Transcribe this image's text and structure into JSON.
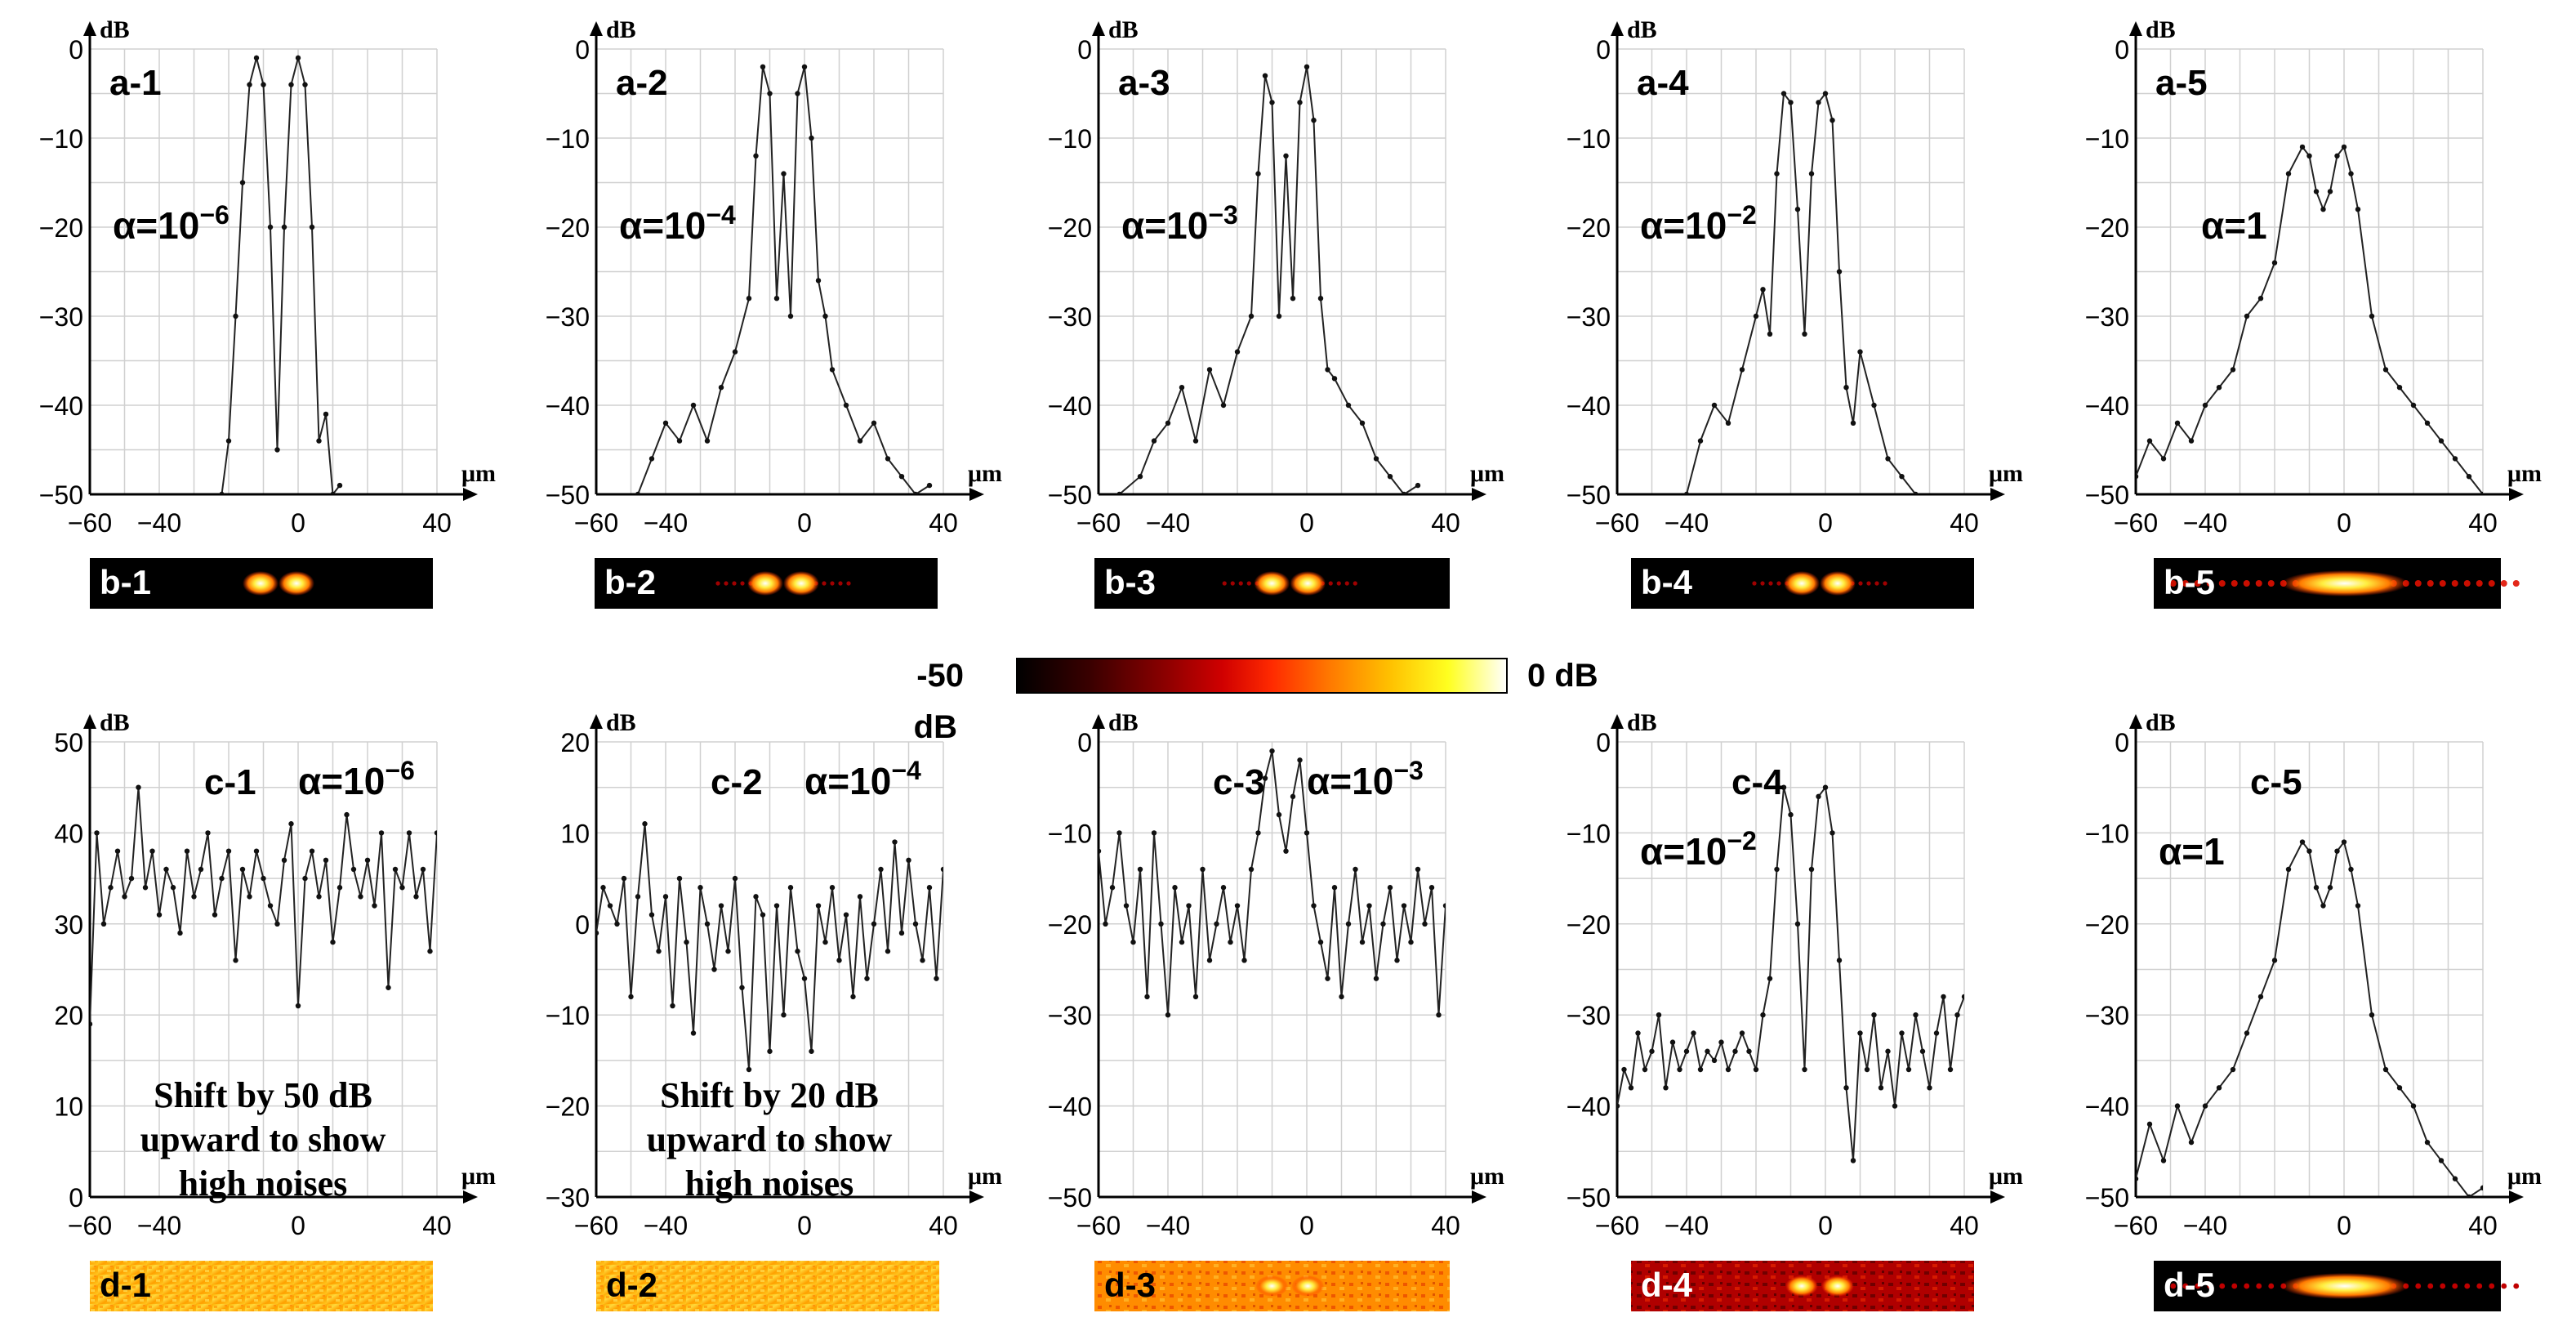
{
  "figure": {
    "colorbar": {
      "min_label": "-50",
      "unit_min": "dB",
      "max_label": "0 dB",
      "colors": [
        "#000000",
        "#3a0000",
        "#8a0000",
        "#d00000",
        "#ff2a00",
        "#ff7a00",
        "#ffc000",
        "#ffff20",
        "#ffffff"
      ]
    },
    "axis_unit_y": "dB",
    "axis_unit_x": "μm"
  },
  "chart_data": [
    {
      "type": "line",
      "panel": "a-1",
      "label": "a-1",
      "alpha": "α=10",
      "alpha_exp": "−6",
      "xlim": [
        -60,
        40
      ],
      "ylim": [
        -50,
        0
      ],
      "xticks": [
        -60,
        -40,
        0,
        40
      ],
      "yticks": [
        0,
        -10,
        -20,
        -30,
        -40,
        -50
      ],
      "x": [
        -22,
        -20,
        -18,
        -16,
        -14,
        -12,
        -10,
        -8,
        -6,
        -4,
        -2,
        0,
        2,
        4,
        6,
        8,
        10,
        12
      ],
      "y": [
        -50,
        -44,
        -30,
        -15,
        -4,
        -1,
        -4,
        -20,
        -45,
        -20,
        -4,
        -1,
        -4,
        -20,
        -44,
        -41,
        -50,
        -49
      ]
    },
    {
      "type": "line",
      "panel": "a-2",
      "label": "a-2",
      "alpha": "α=10",
      "alpha_exp": "−4",
      "xlim": [
        -60,
        40
      ],
      "ylim": [
        -50,
        0
      ],
      "xticks": [
        -60,
        -40,
        0,
        40
      ],
      "yticks": [
        0,
        -10,
        -20,
        -30,
        -40,
        -50
      ],
      "x": [
        -48,
        -44,
        -40,
        -36,
        -32,
        -28,
        -24,
        -20,
        -16,
        -14,
        -12,
        -10,
        -8,
        -6,
        -4,
        -2,
        0,
        2,
        4,
        6,
        8,
        12,
        16,
        20,
        24,
        28,
        32,
        36
      ],
      "y": [
        -50,
        -46,
        -42,
        -44,
        -40,
        -44,
        -38,
        -34,
        -28,
        -12,
        -2,
        -5,
        -28,
        -14,
        -30,
        -5,
        -2,
        -10,
        -26,
        -30,
        -36,
        -40,
        -44,
        -42,
        -46,
        -48,
        -50,
        -49
      ]
    },
    {
      "type": "line",
      "panel": "a-3",
      "label": "a-3",
      "alpha": "α=10",
      "alpha_exp": "−3",
      "xlim": [
        -60,
        40
      ],
      "ylim": [
        -50,
        0
      ],
      "xticks": [
        -60,
        -40,
        0,
        40
      ],
      "yticks": [
        0,
        -10,
        -20,
        -30,
        -40,
        -50
      ],
      "x": [
        -54,
        -48,
        -44,
        -40,
        -36,
        -32,
        -28,
        -24,
        -20,
        -16,
        -14,
        -12,
        -10,
        -8,
        -6,
        -4,
        -2,
        0,
        2,
        4,
        6,
        8,
        12,
        16,
        20,
        24,
        28,
        32
      ],
      "y": [
        -50,
        -48,
        -44,
        -42,
        -38,
        -44,
        -36,
        -40,
        -34,
        -30,
        -14,
        -3,
        -6,
        -30,
        -12,
        -28,
        -6,
        -2,
        -8,
        -28,
        -36,
        -37,
        -40,
        -42,
        -46,
        -48,
        -50,
        -49
      ]
    },
    {
      "type": "line",
      "panel": "a-4",
      "label": "a-4",
      "alpha": "α=10",
      "alpha_exp": "−2",
      "xlim": [
        -60,
        40
      ],
      "ylim": [
        -50,
        0
      ],
      "xticks": [
        -60,
        -40,
        0,
        40
      ],
      "yticks": [
        0,
        -10,
        -20,
        -30,
        -40,
        -50
      ],
      "x": [
        -40,
        -36,
        -32,
        -28,
        -24,
        -20,
        -18,
        -16,
        -14,
        -12,
        -10,
        -8,
        -6,
        -4,
        -2,
        0,
        2,
        4,
        6,
        8,
        10,
        14,
        18,
        22,
        26
      ],
      "y": [
        -50,
        -44,
        -40,
        -42,
        -36,
        -30,
        -27,
        -32,
        -14,
        -5,
        -6,
        -18,
        -32,
        -14,
        -6,
        -5,
        -8,
        -25,
        -38,
        -42,
        -34,
        -40,
        -46,
        -48,
        -50
      ]
    },
    {
      "type": "line",
      "panel": "a-5",
      "label": "a-5",
      "alpha": "α=1",
      "alpha_exp": "",
      "xlim": [
        -60,
        40
      ],
      "ylim": [
        -50,
        0
      ],
      "xticks": [
        -60,
        -40,
        0,
        40
      ],
      "yticks": [
        0,
        -10,
        -20,
        -30,
        -40,
        -50
      ],
      "x": [
        -64,
        -60,
        -56,
        -52,
        -48,
        -44,
        -40,
        -36,
        -32,
        -28,
        -24,
        -20,
        -16,
        -12,
        -10,
        -8,
        -6,
        -4,
        -2,
        0,
        2,
        4,
        8,
        12,
        16,
        20,
        24,
        28,
        32,
        36,
        40
      ],
      "y": [
        -50,
        -48,
        -44,
        -46,
        -42,
        -44,
        -40,
        -38,
        -36,
        -30,
        -28,
        -24,
        -14,
        -11,
        -12,
        -16,
        -18,
        -16,
        -12,
        -11,
        -14,
        -18,
        -30,
        -36,
        -38,
        -40,
        -42,
        -44,
        -46,
        -48,
        -50
      ]
    },
    {
      "type": "line",
      "panel": "c-1",
      "label": "c-1",
      "alpha": "α=10",
      "alpha_exp": "−6",
      "xlim": [
        -60,
        40
      ],
      "ylim": [
        0,
        50
      ],
      "xticks": [
        -60,
        -40,
        0,
        40
      ],
      "yticks": [
        50,
        40,
        30,
        20,
        10,
        0
      ],
      "annotation": [
        "Shift by  50 dB",
        "upward to show",
        "high noises"
      ],
      "x": [
        -64,
        -62,
        -60,
        -58,
        -56,
        -54,
        -52,
        -50,
        -48,
        -46,
        -44,
        -42,
        -40,
        -38,
        -36,
        -34,
        -32,
        -30,
        -28,
        -26,
        -24,
        -22,
        -20,
        -18,
        -16,
        -14,
        -12,
        -10,
        -8,
        -6,
        -4,
        -2,
        0,
        2,
        4,
        6,
        8,
        10,
        12,
        14,
        16,
        18,
        20,
        22,
        24,
        26,
        28,
        30,
        32,
        34,
        36,
        38,
        40
      ],
      "y": [
        34,
        36,
        19,
        40,
        30,
        34,
        38,
        33,
        35,
        45,
        34,
        38,
        31,
        36,
        34,
        29,
        38,
        33,
        36,
        40,
        31,
        35,
        38,
        26,
        36,
        33,
        38,
        35,
        32,
        30,
        37,
        41,
        21,
        35,
        38,
        33,
        37,
        28,
        34,
        42,
        36,
        33,
        37,
        32,
        40,
        23,
        36,
        34,
        40,
        33,
        36,
        27,
        40
      ]
    },
    {
      "type": "line",
      "panel": "c-2",
      "label": "c-2",
      "alpha": "α=10",
      "alpha_exp": "−4",
      "xlim": [
        -60,
        40
      ],
      "ylim": [
        -30,
        20
      ],
      "xticks": [
        -60,
        -40,
        0,
        40
      ],
      "yticks": [
        20,
        10,
        0,
        -10,
        -20,
        -30
      ],
      "annotation": [
        "Shift by  20 dB",
        "upward to show",
        "high noises"
      ],
      "x": [
        -64,
        -62,
        -60,
        -58,
        -56,
        -54,
        -52,
        -50,
        -48,
        -46,
        -44,
        -42,
        -40,
        -38,
        -36,
        -34,
        -32,
        -30,
        -28,
        -26,
        -24,
        -22,
        -20,
        -18,
        -16,
        -14,
        -12,
        -10,
        -8,
        -6,
        -4,
        -2,
        0,
        2,
        4,
        6,
        8,
        10,
        12,
        14,
        16,
        18,
        20,
        22,
        24,
        26,
        28,
        30,
        32,
        34,
        36,
        38,
        40
      ],
      "y": [
        6,
        2,
        -1,
        4,
        2,
        0,
        5,
        -8,
        3,
        11,
        1,
        -3,
        3,
        -9,
        5,
        -2,
        -12,
        4,
        0,
        -5,
        2,
        -3,
        5,
        -7,
        -16,
        3,
        1,
        -14,
        2,
        -10,
        4,
        -3,
        -6,
        -14,
        2,
        -2,
        4,
        -4,
        1,
        -8,
        3,
        -6,
        0,
        6,
        -3,
        9,
        -1,
        7,
        0,
        -4,
        4,
        -6,
        6
      ]
    },
    {
      "type": "line",
      "panel": "c-3",
      "label": "c-3",
      "alpha": "α=10",
      "alpha_exp": "−3",
      "xlim": [
        -60,
        40
      ],
      "ylim": [
        -50,
        0
      ],
      "xticks": [
        -60,
        -40,
        0,
        40
      ],
      "yticks": [
        0,
        -10,
        -20,
        -30,
        -40,
        -50
      ],
      "x": [
        -64,
        -62,
        -60,
        -58,
        -56,
        -54,
        -52,
        -50,
        -48,
        -46,
        -44,
        -42,
        -40,
        -38,
        -36,
        -34,
        -32,
        -30,
        -28,
        -26,
        -24,
        -22,
        -20,
        -18,
        -16,
        -14,
        -12,
        -10,
        -8,
        -6,
        -4,
        -2,
        0,
        2,
        4,
        6,
        8,
        10,
        12,
        14,
        16,
        18,
        20,
        22,
        24,
        26,
        28,
        30,
        32,
        34,
        36,
        38,
        40
      ],
      "y": [
        -18,
        -22,
        -12,
        -20,
        -16,
        -10,
        -18,
        -22,
        -14,
        -28,
        -10,
        -20,
        -30,
        -16,
        -22,
        -18,
        -28,
        -14,
        -24,
        -20,
        -16,
        -22,
        -18,
        -24,
        -14,
        -10,
        -4,
        -1,
        -8,
        -12,
        -6,
        -2,
        -10,
        -18,
        -22,
        -26,
        -16,
        -28,
        -20,
        -14,
        -22,
        -18,
        -26,
        -20,
        -16,
        -24,
        -18,
        -22,
        -14,
        -20,
        -16,
        -30,
        -18
      ]
    },
    {
      "type": "line",
      "panel": "c-4",
      "label": "c-4",
      "alpha": "α=10",
      "alpha_exp": "−2",
      "xlim": [
        -60,
        40
      ],
      "ylim": [
        -50,
        0
      ],
      "xticks": [
        -60,
        -40,
        0,
        40
      ],
      "yticks": [
        0,
        -10,
        -20,
        -30,
        -40,
        -50
      ],
      "x": [
        -64,
        -62,
        -60,
        -58,
        -56,
        -54,
        -52,
        -50,
        -48,
        -46,
        -44,
        -42,
        -40,
        -38,
        -36,
        -34,
        -32,
        -30,
        -28,
        -26,
        -24,
        -22,
        -20,
        -18,
        -16,
        -14,
        -12,
        -10,
        -8,
        -6,
        -4,
        -2,
        0,
        2,
        4,
        6,
        8,
        10,
        12,
        14,
        16,
        18,
        20,
        22,
        24,
        26,
        28,
        30,
        32,
        34,
        36,
        38,
        40
      ],
      "y": [
        -34,
        -48,
        -40,
        -36,
        -38,
        -32,
        -36,
        -34,
        -30,
        -38,
        -33,
        -36,
        -34,
        -32,
        -36,
        -34,
        -35,
        -33,
        -36,
        -34,
        -32,
        -34,
        -36,
        -30,
        -26,
        -14,
        -5,
        -8,
        -20,
        -36,
        -14,
        -6,
        -5,
        -10,
        -24,
        -38,
        -46,
        -32,
        -36,
        -30,
        -38,
        -34,
        -40,
        -32,
        -36,
        -30,
        -34,
        -38,
        -32,
        -28,
        -36,
        -30,
        -28
      ]
    },
    {
      "type": "line",
      "panel": "c-5",
      "label": "c-5",
      "alpha": "α=1",
      "alpha_exp": "",
      "xlim": [
        -60,
        40
      ],
      "ylim": [
        -50,
        0
      ],
      "xticks": [
        -60,
        -40,
        0,
        40
      ],
      "yticks": [
        0,
        -10,
        -20,
        -30,
        -40,
        -50
      ],
      "x": [
        -64,
        -60,
        -56,
        -52,
        -48,
        -44,
        -40,
        -36,
        -32,
        -28,
        -24,
        -20,
        -16,
        -12,
        -10,
        -8,
        -6,
        -4,
        -2,
        0,
        2,
        4,
        8,
        12,
        16,
        20,
        24,
        28,
        32,
        36,
        40
      ],
      "y": [
        -44,
        -48,
        -42,
        -46,
        -40,
        -44,
        -40,
        -38,
        -36,
        -32,
        -28,
        -24,
        -14,
        -11,
        -12,
        -16,
        -18,
        -16,
        -12,
        -11,
        -14,
        -18,
        -30,
        -36,
        -38,
        -40,
        -44,
        -46,
        -48,
        -50,
        -49
      ]
    }
  ],
  "images": {
    "b": [
      "b-1",
      "b-2",
      "b-3",
      "b-4",
      "b-5"
    ],
    "d": [
      "d-1",
      "d-2",
      "d-3",
      "d-4",
      "d-5"
    ]
  }
}
